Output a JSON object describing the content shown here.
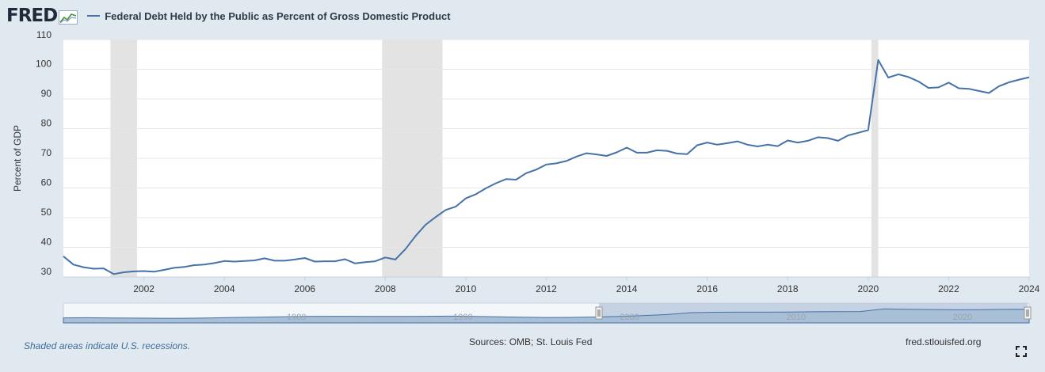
{
  "header": {
    "logo": "FRED",
    "title": "Federal Debt Held by the Public as Percent of Gross Domestic Product"
  },
  "colors": {
    "line": "#4572a7",
    "recession": "#e3e3e3",
    "background": "#e1e9f0",
    "plot": "#ffffff"
  },
  "footer": {
    "recession_note": "Shaded areas indicate U.S. recessions.",
    "sources": "Sources: OMB; St. Louis Fed",
    "site": "fred.stlouisfed.org"
  },
  "chart_data": {
    "type": "line",
    "title": "Federal Debt Held by the Public as Percent of Gross Domestic Product",
    "xlabel": "",
    "ylabel": "Percent of GDP",
    "xlim": [
      2000.0,
      2024.0
    ],
    "ylim": [
      30,
      110
    ],
    "yticks": [
      30,
      40,
      50,
      60,
      70,
      80,
      90,
      100,
      110
    ],
    "xticks": [
      2002,
      2004,
      2006,
      2008,
      2010,
      2012,
      2014,
      2016,
      2018,
      2020,
      2022,
      2024
    ],
    "grid": true,
    "recessions": [
      [
        2001.17,
        2001.83
      ],
      [
        2007.92,
        2009.42
      ],
      [
        2020.08,
        2020.25
      ]
    ],
    "series": [
      {
        "name": "Federal Debt Held by the Public as Percent of Gross Domestic Product",
        "x": [
          2000.0,
          2000.25,
          2000.5,
          2000.75,
          2001.0,
          2001.25,
          2001.5,
          2001.75,
          2002.0,
          2002.25,
          2002.5,
          2002.75,
          2003.0,
          2003.25,
          2003.5,
          2003.75,
          2004.0,
          2004.25,
          2004.5,
          2004.75,
          2005.0,
          2005.25,
          2005.5,
          2005.75,
          2006.0,
          2006.25,
          2006.5,
          2006.75,
          2007.0,
          2007.25,
          2007.5,
          2007.75,
          2008.0,
          2008.25,
          2008.5,
          2008.75,
          2009.0,
          2009.25,
          2009.5,
          2009.75,
          2010.0,
          2010.25,
          2010.5,
          2010.75,
          2011.0,
          2011.25,
          2011.5,
          2011.75,
          2012.0,
          2012.25,
          2012.5,
          2012.75,
          2013.0,
          2013.25,
          2013.5,
          2013.75,
          2014.0,
          2014.25,
          2014.5,
          2014.75,
          2015.0,
          2015.25,
          2015.5,
          2015.75,
          2016.0,
          2016.25,
          2016.5,
          2016.75,
          2017.0,
          2017.25,
          2017.5,
          2017.75,
          2018.0,
          2018.25,
          2018.5,
          2018.75,
          2019.0,
          2019.25,
          2019.5,
          2019.75,
          2020.0,
          2020.25,
          2020.5,
          2020.75,
          2021.0,
          2021.25,
          2021.5,
          2021.75,
          2022.0,
          2022.25,
          2022.5,
          2022.75,
          2023.0,
          2023.25,
          2023.5,
          2023.75,
          2024.0
        ],
        "values": [
          37.0,
          34.2,
          33.3,
          32.8,
          32.9,
          31.0,
          31.6,
          31.9,
          32.0,
          31.8,
          32.4,
          33.1,
          33.4,
          34.0,
          34.2,
          34.7,
          35.4,
          35.2,
          35.4,
          35.6,
          36.3,
          35.5,
          35.5,
          35.9,
          36.4,
          35.2,
          35.3,
          35.3,
          36.0,
          34.6,
          35.0,
          35.3,
          36.6,
          35.9,
          39.4,
          43.8,
          47.6,
          50.2,
          52.6,
          53.7,
          56.5,
          57.9,
          59.9,
          61.6,
          63.0,
          62.8,
          65.0,
          66.2,
          67.9,
          68.3,
          69.1,
          70.6,
          71.7,
          71.3,
          70.8,
          72.0,
          73.6,
          71.9,
          71.9,
          72.7,
          72.5,
          71.6,
          71.4,
          74.4,
          75.3,
          74.6,
          75.1,
          75.7,
          74.6,
          74.0,
          74.6,
          74.1,
          76.0,
          75.3,
          75.9,
          77.1,
          76.8,
          75.9,
          77.7,
          78.6,
          79.5,
          103.1,
          97.2,
          98.3,
          97.4,
          95.9,
          93.7,
          93.9,
          95.5,
          93.6,
          93.4,
          92.7,
          92.0,
          94.3,
          95.6,
          96.5,
          97.3
        ]
      }
    ],
    "navigator": {
      "tick_labels": [
        "1980",
        "1990",
        "2000",
        "2010",
        "2020"
      ],
      "values": [
        28,
        29,
        27,
        26,
        25,
        25,
        27,
        31,
        33,
        37,
        40,
        41,
        41,
        40,
        40,
        41,
        42,
        40,
        36,
        33,
        31,
        32,
        35,
        39,
        46,
        55,
        70,
        73,
        74,
        74,
        75,
        77,
        78,
        79,
        100,
        97,
        95,
        93,
        94,
        96,
        97
      ]
    }
  }
}
